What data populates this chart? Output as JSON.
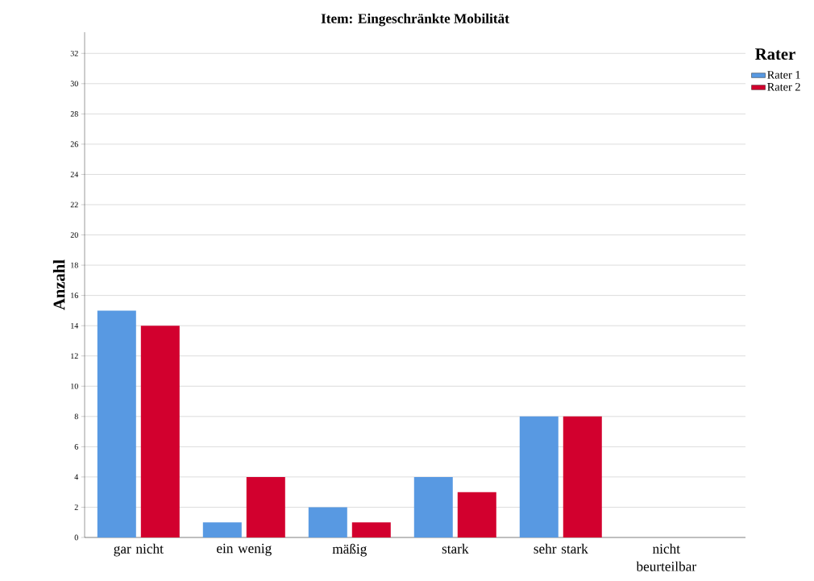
{
  "chart_data": {
    "type": "bar",
    "title": "Item: Eingeschränkte Mobilität",
    "ylabel": "Anzahl",
    "legend_title": "Rater",
    "categories": [
      "gar nicht",
      "ein wenig",
      "mäßig",
      "stark",
      "sehr stark",
      "nicht beurteilbar"
    ],
    "series": [
      {
        "name": "Rater 1",
        "color": "#5899e2",
        "values": [
          15,
          1,
          2,
          4,
          8,
          0
        ]
      },
      {
        "name": "Rater 2",
        "color": "#d2002e",
        "values": [
          14,
          4,
          1,
          3,
          8,
          0
        ]
      }
    ],
    "ylim": [
      0,
      33.4
    ],
    "yticks": [
      0,
      2,
      4,
      6,
      8,
      10,
      12,
      14,
      16,
      18,
      20,
      22,
      24,
      26,
      28,
      30,
      32
    ],
    "grid": "y",
    "legend": "top right"
  }
}
